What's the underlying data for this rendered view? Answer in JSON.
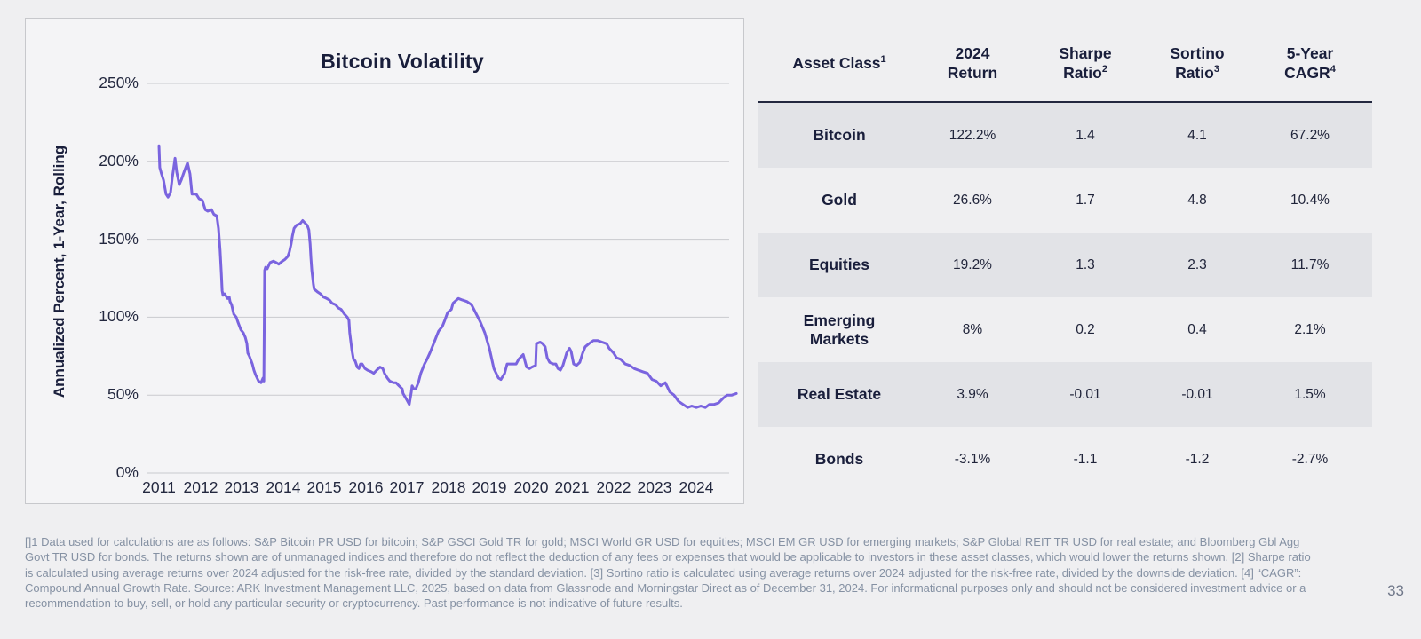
{
  "page": {
    "background": "#EFEFF1",
    "page_number": "33"
  },
  "chart": {
    "title": "Bitcoin Volatility",
    "y_axis_label": "Annualized Percent, 1-Year, Rolling",
    "y_ticks": [
      "250%",
      "200%",
      "150%",
      "100%",
      "50%",
      "0%"
    ],
    "x_ticks": [
      "2011",
      "2012",
      "2013",
      "2014",
      "2015",
      "2016",
      "2017",
      "2018",
      "2019",
      "2020",
      "2021",
      "2022",
      "2023",
      "2024"
    ],
    "line_color": "#7A64DF",
    "gridline_color": "#C9CACE"
  },
  "chart_data": {
    "type": "line",
    "title": "Bitcoin Volatility",
    "xlabel": "",
    "ylabel": "Annualized Percent, 1-Year, Rolling",
    "x_range": [
      2011,
      2025
    ],
    "ylim": [
      0,
      250
    ],
    "y_tick_step": 50,
    "grid": "horizontal",
    "legend": "none",
    "series": [
      {
        "name": "Bitcoin 1-year rolling annualized volatility (%)",
        "points": [
          [
            2011.0,
            210
          ],
          [
            2011.02,
            196
          ],
          [
            2011.06,
            192
          ],
          [
            2011.11,
            188
          ],
          [
            2011.17,
            179
          ],
          [
            2011.22,
            177
          ],
          [
            2011.28,
            180
          ],
          [
            2011.32,
            189
          ],
          [
            2011.39,
            202
          ],
          [
            2011.43,
            193
          ],
          [
            2011.49,
            185
          ],
          [
            2011.54,
            188
          ],
          [
            2011.62,
            194
          ],
          [
            2011.69,
            199
          ],
          [
            2011.75,
            192
          ],
          [
            2011.8,
            179
          ],
          [
            2011.9,
            179
          ],
          [
            2011.97,
            176
          ],
          [
            2012.05,
            175
          ],
          [
            2012.12,
            169
          ],
          [
            2012.18,
            168
          ],
          [
            2012.27,
            169
          ],
          [
            2012.33,
            166
          ],
          [
            2012.4,
            165
          ],
          [
            2012.44,
            157
          ],
          [
            2012.48,
            143
          ],
          [
            2012.51,
            128
          ],
          [
            2012.53,
            117
          ],
          [
            2012.55,
            114
          ],
          [
            2012.59,
            115
          ],
          [
            2012.66,
            112
          ],
          [
            2012.7,
            113
          ],
          [
            2012.72,
            110
          ],
          [
            2012.76,
            108
          ],
          [
            2012.81,
            102
          ],
          [
            2012.87,
            100
          ],
          [
            2012.91,
            97
          ],
          [
            2012.98,
            92
          ],
          [
            2013.04,
            90
          ],
          [
            2013.09,
            87
          ],
          [
            2013.13,
            83
          ],
          [
            2013.15,
            77
          ],
          [
            2013.19,
            75
          ],
          [
            2013.26,
            70
          ],
          [
            2013.3,
            66
          ],
          [
            2013.34,
            63
          ],
          [
            2013.41,
            59
          ],
          [
            2013.47,
            58
          ],
          [
            2013.52,
            61
          ],
          [
            2013.54,
            59
          ],
          [
            2013.56,
            130
          ],
          [
            2013.58,
            132
          ],
          [
            2013.62,
            131
          ],
          [
            2013.69,
            135
          ],
          [
            2013.77,
            136
          ],
          [
            2013.84,
            135
          ],
          [
            2013.9,
            134
          ],
          [
            2013.99,
            136
          ],
          [
            2014.05,
            137
          ],
          [
            2014.12,
            139
          ],
          [
            2014.16,
            142
          ],
          [
            2014.2,
            147
          ],
          [
            2014.23,
            152
          ],
          [
            2014.27,
            157
          ],
          [
            2014.33,
            159
          ],
          [
            2014.42,
            160
          ],
          [
            2014.48,
            162
          ],
          [
            2014.55,
            160
          ],
          [
            2014.59,
            159
          ],
          [
            2014.63,
            156
          ],
          [
            2014.66,
            147
          ],
          [
            2014.68,
            138
          ],
          [
            2014.7,
            130
          ],
          [
            2014.74,
            121
          ],
          [
            2014.76,
            118
          ],
          [
            2014.85,
            116
          ],
          [
            2014.91,
            115
          ],
          [
            2014.98,
            113
          ],
          [
            2015.06,
            112
          ],
          [
            2015.13,
            111
          ],
          [
            2015.19,
            109
          ],
          [
            2015.28,
            108
          ],
          [
            2015.34,
            106
          ],
          [
            2015.41,
            105
          ],
          [
            2015.49,
            102
          ],
          [
            2015.56,
            100
          ],
          [
            2015.6,
            98
          ],
          [
            2015.62,
            90
          ],
          [
            2015.67,
            79
          ],
          [
            2015.71,
            73
          ],
          [
            2015.75,
            72
          ],
          [
            2015.8,
            68
          ],
          [
            2015.84,
            67
          ],
          [
            2015.88,
            70
          ],
          [
            2015.92,
            70
          ],
          [
            2015.99,
            67
          ],
          [
            2016.05,
            66
          ],
          [
            2016.14,
            65
          ],
          [
            2016.2,
            64
          ],
          [
            2016.27,
            66
          ],
          [
            2016.35,
            68
          ],
          [
            2016.42,
            67
          ],
          [
            2016.46,
            64
          ],
          [
            2016.53,
            61
          ],
          [
            2016.59,
            59
          ],
          [
            2016.68,
            58
          ],
          [
            2016.74,
            58
          ],
          [
            2016.81,
            56
          ],
          [
            2016.89,
            54
          ],
          [
            2016.91,
            51
          ],
          [
            2017.0,
            47
          ],
          [
            2017.06,
            44
          ],
          [
            2017.11,
            52
          ],
          [
            2017.13,
            56
          ],
          [
            2017.17,
            54
          ],
          [
            2017.22,
            54
          ],
          [
            2017.28,
            58
          ],
          [
            2017.34,
            64
          ],
          [
            2017.43,
            70
          ],
          [
            2017.49,
            73
          ],
          [
            2017.56,
            77
          ],
          [
            2017.65,
            83
          ],
          [
            2017.71,
            87
          ],
          [
            2017.77,
            91
          ],
          [
            2017.86,
            94
          ],
          [
            2017.92,
            98
          ],
          [
            2017.99,
            103
          ],
          [
            2018.08,
            105
          ],
          [
            2018.12,
            109
          ],
          [
            2018.25,
            112
          ],
          [
            2018.35,
            111
          ],
          [
            2018.46,
            110
          ],
          [
            2018.57,
            108
          ],
          [
            2018.78,
            97
          ],
          [
            2018.89,
            90
          ],
          [
            2019.0,
            80
          ],
          [
            2019.11,
            67
          ],
          [
            2019.22,
            61
          ],
          [
            2019.28,
            60
          ],
          [
            2019.37,
            64
          ],
          [
            2019.43,
            70
          ],
          [
            2019.49,
            70
          ],
          [
            2019.58,
            70
          ],
          [
            2019.65,
            70
          ],
          [
            2019.71,
            73
          ],
          [
            2019.82,
            76
          ],
          [
            2019.9,
            68
          ],
          [
            2019.97,
            67
          ],
          [
            2020.03,
            68
          ],
          [
            2020.12,
            69
          ],
          [
            2020.14,
            83
          ],
          [
            2020.23,
            84
          ],
          [
            2020.29,
            83
          ],
          [
            2020.35,
            81
          ],
          [
            2020.4,
            74
          ],
          [
            2020.46,
            71
          ],
          [
            2020.55,
            70
          ],
          [
            2020.61,
            70
          ],
          [
            2020.66,
            67
          ],
          [
            2020.72,
            66
          ],
          [
            2020.78,
            69
          ],
          [
            2020.87,
            77
          ],
          [
            2020.94,
            80
          ],
          [
            2020.98,
            78
          ],
          [
            2021.04,
            70
          ],
          [
            2021.11,
            69
          ],
          [
            2021.19,
            71
          ],
          [
            2021.26,
            77
          ],
          [
            2021.32,
            81
          ],
          [
            2021.41,
            83
          ],
          [
            2021.52,
            85
          ],
          [
            2021.62,
            85
          ],
          [
            2021.73,
            84
          ],
          [
            2021.84,
            83
          ],
          [
            2021.9,
            80
          ],
          [
            2022.01,
            77
          ],
          [
            2022.08,
            74
          ],
          [
            2022.18,
            73
          ],
          [
            2022.29,
            70
          ],
          [
            2022.4,
            69
          ],
          [
            2022.51,
            67
          ],
          [
            2022.61,
            66
          ],
          [
            2022.72,
            65
          ],
          [
            2022.83,
            64
          ],
          [
            2022.94,
            60
          ],
          [
            2023.04,
            59
          ],
          [
            2023.15,
            56
          ],
          [
            2023.26,
            58
          ],
          [
            2023.37,
            52
          ],
          [
            2023.47,
            50
          ],
          [
            2023.58,
            46
          ],
          [
            2023.69,
            44
          ],
          [
            2023.8,
            42
          ],
          [
            2023.9,
            43
          ],
          [
            2024.01,
            42
          ],
          [
            2024.12,
            43
          ],
          [
            2024.23,
            42
          ],
          [
            2024.33,
            44
          ],
          [
            2024.44,
            44
          ],
          [
            2024.55,
            45
          ],
          [
            2024.66,
            48
          ],
          [
            2024.76,
            50
          ],
          [
            2024.87,
            50
          ],
          [
            2024.98,
            51
          ]
        ]
      }
    ]
  },
  "table": {
    "headers": [
      {
        "line1": "Asset Class",
        "sup1": "1",
        "line2": "",
        "sup2": ""
      },
      {
        "line1": "2024",
        "sup1": "",
        "line2": "Return",
        "sup2": ""
      },
      {
        "line1": "Sharpe",
        "sup1": "",
        "line2": "Ratio",
        "sup2": "2"
      },
      {
        "line1": "Sortino",
        "sup1": "",
        "line2": "Ratio",
        "sup2": "3"
      },
      {
        "line1": "5-Year",
        "sup1": "",
        "line2": "CAGR",
        "sup2": "4"
      }
    ],
    "rows": [
      {
        "asset": "Bitcoin",
        "values": [
          "122.2%",
          "1.4",
          "4.1",
          "67.2%"
        ]
      },
      {
        "asset": "Gold",
        "values": [
          "26.6%",
          "1.7",
          "4.8",
          "10.4%"
        ]
      },
      {
        "asset": "Equities",
        "values": [
          "19.2%",
          "1.3",
          "2.3",
          "11.7%"
        ]
      },
      {
        "asset": "Emerging Markets",
        "values": [
          "8%",
          "0.2",
          "0.4",
          "2.1%"
        ]
      },
      {
        "asset": "Real Estate",
        "values": [
          "3.9%",
          "-0.01",
          "-0.01",
          "1.5%"
        ]
      },
      {
        "asset": "Bonds",
        "values": [
          "-3.1%",
          "-1.1",
          "-1.2",
          "-2.7%"
        ]
      }
    ]
  },
  "footnote": "[]1 Data used for calculations are as follows: S&P Bitcoin PR USD for bitcoin; S&P GSCI Gold TR for gold; MSCI World GR USD for equities; MSCI EM GR USD for emerging markets; S&P Global REIT TR USD for real estate; and Bloomberg Gbl Agg Govt TR USD for bonds. The returns shown are of unmanaged indices and therefore do not reflect the deduction of any fees or expenses that would be applicable to investors in these asset classes, which would lower the returns shown. [2] Sharpe ratio is calculated using average returns over 2024 adjusted for the risk-free rate, divided by the standard deviation. [3] Sortino ratio is calculated using average returns over 2024 adjusted for the risk-free rate, divided by the downside deviation. [4] “CAGR”: Compound Annual Growth Rate. Source: ARK Investment Management LLC, 2025, based on data from Glassnode and Morningstar Direct as of December 31, 2024. For informational purposes only and should not be considered investment advice or a recommendation to buy, sell, or hold any particular security or cryptocurrency. Past performance is not indicative of future results."
}
